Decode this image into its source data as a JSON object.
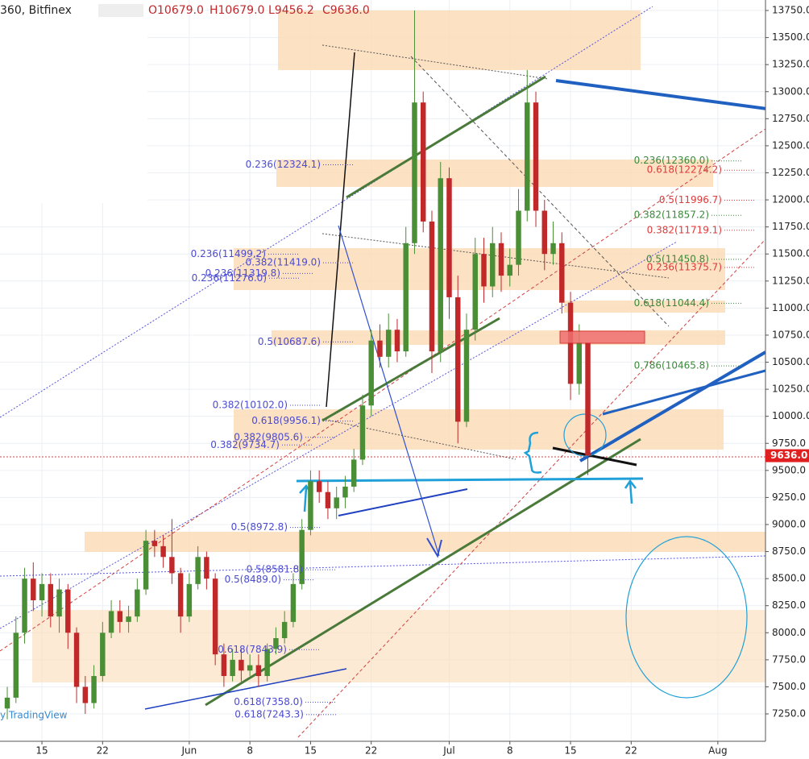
{
  "header": {
    "symbol": "360, Bitfinex",
    "open": "O10679.0",
    "high": "H10679.0",
    "low": "L9456.2",
    "close": "C9636.0"
  },
  "watermark": "y TradingView",
  "chart_data": {
    "type": "candlestick",
    "x": [
      -4,
      -3,
      -2,
      -1,
      0,
      1,
      2,
      3,
      4,
      5,
      6,
      7,
      8,
      9,
      10,
      11,
      12,
      13,
      14,
      15,
      16,
      17,
      18,
      19,
      20,
      21,
      22,
      23,
      24,
      25,
      26,
      27,
      28,
      29,
      30,
      31,
      32,
      33,
      34,
      35,
      36,
      37,
      38,
      39,
      40,
      41,
      42,
      43,
      44,
      45,
      46,
      47,
      48,
      49,
      50,
      51,
      52,
      53,
      54,
      55,
      56,
      57,
      58,
      59,
      60,
      61,
      62,
      63
    ],
    "open": [
      7300,
      7400,
      8000,
      8500,
      8300,
      8450,
      8150,
      8400,
      8000,
      7500,
      7350,
      7600,
      8000,
      8200,
      8100,
      8150,
      8400,
      8850,
      8800,
      8700,
      8550,
      8150,
      8450,
      8700,
      8500,
      7800,
      7600,
      7750,
      7650,
      7700,
      7600,
      7850,
      7950,
      8100,
      8450,
      8950,
      9400,
      9300,
      9150,
      9250,
      9350,
      9600,
      10100,
      10700,
      10550,
      10800,
      10600,
      11600,
      12900,
      11800,
      10600,
      12200,
      11100,
      9950,
      10800,
      11500,
      11200,
      11600,
      11300,
      11400,
      11900,
      12900,
      11900,
      11500,
      11600,
      11050,
      10300,
      10679
    ],
    "high": [
      7500,
      8150,
      8600,
      8650,
      8550,
      8550,
      8500,
      8450,
      8050,
      7600,
      7700,
      8100,
      8300,
      8300,
      8250,
      8500,
      8950,
      8950,
      8900,
      9050,
      8600,
      8550,
      8800,
      8750,
      8550,
      7900,
      7850,
      7850,
      7800,
      7800,
      7900,
      8050,
      8200,
      8550,
      9050,
      9500,
      9500,
      9400,
      9350,
      9450,
      9700,
      10200,
      10800,
      10850,
      10950,
      10900,
      11750,
      13750,
      13000,
      11900,
      12350,
      12300,
      11300,
      10950,
      11650,
      11650,
      11750,
      11700,
      11550,
      12100,
      13200,
      13000,
      12000,
      11800,
      11700,
      11150,
      10850,
      10679
    ],
    "low": [
      7200,
      7350,
      7900,
      8200,
      8150,
      8050,
      8000,
      7850,
      7350,
      7250,
      7300,
      7550,
      7950,
      8000,
      8000,
      8100,
      8350,
      8700,
      8600,
      8450,
      8000,
      8100,
      8400,
      8400,
      7700,
      7500,
      7550,
      7550,
      7600,
      7500,
      7550,
      7800,
      7900,
      8050,
      8400,
      8900,
      9200,
      9050,
      9050,
      9150,
      9300,
      9550,
      10000,
      10450,
      10450,
      10500,
      10550,
      11500,
      11700,
      10400,
      10500,
      10900,
      9750,
      9900,
      10700,
      11050,
      11100,
      11150,
      11200,
      11300,
      11800,
      11750,
      11350,
      11400,
      10950,
      10150,
      10200,
      9456.2
    ],
    "close": [
      7400,
      8000,
      8500,
      8300,
      8450,
      8150,
      8400,
      8000,
      7500,
      7350,
      7600,
      8000,
      8200,
      8100,
      8150,
      8400,
      8850,
      8800,
      8700,
      8550,
      8150,
      8450,
      8700,
      8500,
      7800,
      7600,
      7750,
      7650,
      7700,
      7600,
      7850,
      7950,
      8100,
      8450,
      8950,
      9400,
      9300,
      9150,
      9250,
      9350,
      9600,
      10100,
      10700,
      10550,
      10800,
      10600,
      11600,
      12900,
      11800,
      10600,
      12200,
      11100,
      9950,
      10800,
      11500,
      11200,
      11600,
      11300,
      11400,
      11900,
      12900,
      11900,
      11500,
      11600,
      11050,
      10300,
      10679,
      9636
    ],
    "up_color": "#4a8f35",
    "down_color": "#c0282a",
    "last_price_label": "9636.0",
    "grid": true,
    "xlim": [
      -4.84,
      83.5
    ],
    "xticks": [
      {
        "value": 0,
        "label": "15"
      },
      {
        "value": 7,
        "label": "22"
      },
      {
        "value": 17,
        "label": "Jun"
      },
      {
        "value": 24,
        "label": "8"
      },
      {
        "value": 31,
        "label": "15"
      },
      {
        "value": 38,
        "label": "22"
      },
      {
        "value": 47,
        "label": "Jul"
      },
      {
        "value": 54,
        "label": "8"
      },
      {
        "value": 61,
        "label": "15"
      },
      {
        "value": 68,
        "label": "22"
      },
      {
        "value": 78,
        "label": "Aug"
      }
    ],
    "ylim": [
      6997,
      13847
    ],
    "yticks": [
      {
        "value": 7250,
        "label": "7250.0"
      },
      {
        "value": 7500,
        "label": "7500.0"
      },
      {
        "value": 7750,
        "label": "7750.0"
      },
      {
        "value": 8000,
        "label": "8000.0"
      },
      {
        "value": 8250,
        "label": "8250.0"
      },
      {
        "value": 8500,
        "label": "8500.0"
      },
      {
        "value": 8750,
        "label": "8750.0"
      },
      {
        "value": 9000,
        "label": "9000.0"
      },
      {
        "value": 9250,
        "label": "9250.0"
      },
      {
        "value": 9500,
        "label": "9500.0"
      },
      {
        "value": 9750,
        "label": "9750.0"
      },
      {
        "value": 10000,
        "label": "10000.0"
      },
      {
        "value": 10250,
        "label": "10250.0"
      },
      {
        "value": 10500,
        "label": "10500.0"
      },
      {
        "value": 10750,
        "label": "10750.0"
      },
      {
        "value": 11000,
        "label": "11000.0"
      },
      {
        "value": 11250,
        "label": "11250.0"
      },
      {
        "value": 11500,
        "label": "11500.0"
      },
      {
        "value": 11750,
        "label": "11750.0"
      },
      {
        "value": 12000,
        "label": "12000.0"
      },
      {
        "value": 12250,
        "label": "12250.0"
      },
      {
        "value": 12500,
        "label": "12500.0"
      },
      {
        "value": 12750,
        "label": "12750.0"
      },
      {
        "value": 13000,
        "label": "13000.0"
      },
      {
        "value": 13250,
        "label": "13250.0"
      },
      {
        "value": 13500,
        "label": "13500.0"
      },
      {
        "value": 13750,
        "label": "13750.0"
      }
    ],
    "annotations": [
      {
        "label": "0.236(12324.1)",
        "value": 12324.1,
        "color": "#4b4bd0"
      },
      {
        "label": "0.236(11499.2)",
        "value": 11499.2,
        "color": "#4b4bd0"
      },
      {
        "label": "0.382(11419.0)",
        "value": 11419.0,
        "color": "#4b4bd0"
      },
      {
        "label": "0.236(11319.8)",
        "value": 11319.8,
        "color": "#4b4bd0"
      },
      {
        "label": "0.236(11276.0)",
        "value": 11276.0,
        "color": "#4b4bd0"
      },
      {
        "label": "0.5(10687.6)",
        "value": 10687.6,
        "color": "#4b4bd0"
      },
      {
        "label": "0.382(10102.0)",
        "value": 10102.0,
        "color": "#4b4bd0"
      },
      {
        "label": "0.618(9956.1)",
        "value": 9956.1,
        "color": "#4b4bd0"
      },
      {
        "label": "0.382(9805.6)",
        "value": 9805.6,
        "color": "#4b4bd0"
      },
      {
        "label": "0.382(9734.7)",
        "value": 9734.7,
        "color": "#4b4bd0"
      },
      {
        "label": "0.5(8972.8)",
        "value": 8972.8,
        "color": "#4b4bd0"
      },
      {
        "label": "0.5(8581.8)",
        "value": 8581.8,
        "color": "#4b4bd0"
      },
      {
        "label": "0.5(8489.0)",
        "value": 8489.0,
        "color": "#4b4bd0"
      },
      {
        "label": "0.618(7843.9)",
        "value": 7843.9,
        "color": "#4b4bd0"
      },
      {
        "label": "0.618(7358.0)",
        "value": 7358.0,
        "color": "#4b4bd0"
      },
      {
        "label": "0.618(7243.3)",
        "value": 7243.3,
        "color": "#4b4bd0"
      },
      {
        "label": "0.236(12360.0)",
        "value": 12360.0,
        "color": "#3a8a3a"
      },
      {
        "label": "0.382(11857.2)",
        "value": 11857.2,
        "color": "#3a8a3a"
      },
      {
        "label": "0.5(11450.8)",
        "value": 11450.8,
        "color": "#3a8a3a"
      },
      {
        "label": "0.618(11044.4)",
        "value": 11044.4,
        "color": "#3a8a3a"
      },
      {
        "label": "0.786(10465.8)",
        "value": 10465.8,
        "color": "#3a8a3a"
      },
      {
        "label": "0.618(12274.2)",
        "value": 12274.2,
        "color": "#e03a3a"
      },
      {
        "label": "0.5(11996.7)",
        "value": 11996.7,
        "color": "#e03a3a"
      },
      {
        "label": "0.382(11719.1)",
        "value": 11719.1,
        "color": "#e03a3a"
      },
      {
        "label": "0.236(11375.7)",
        "value": 11375.7,
        "color": "#e03a3a"
      }
    ]
  }
}
